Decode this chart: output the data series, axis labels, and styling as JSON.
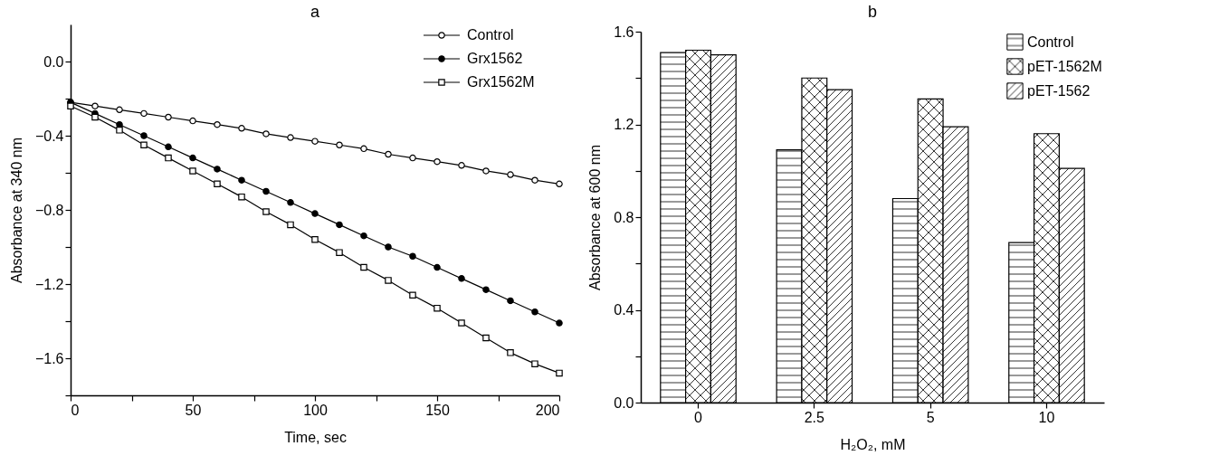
{
  "chart_data": [
    {
      "type": "line",
      "title": "a",
      "xlabel": "Time, sec",
      "ylabel": "Absorbance at 340 nm",
      "x": [
        0,
        10,
        20,
        30,
        40,
        50,
        60,
        70,
        80,
        90,
        100,
        110,
        120,
        130,
        140,
        150,
        160,
        170,
        180,
        190,
        200
      ],
      "series": [
        {
          "name": "Control",
          "color": "#000000",
          "marker": "circle",
          "values": [
            -0.22,
            -0.24,
            -0.26,
            -0.28,
            -0.3,
            -0.32,
            -0.34,
            -0.36,
            -0.39,
            -0.41,
            -0.43,
            -0.45,
            -0.47,
            -0.5,
            -0.52,
            -0.54,
            -0.56,
            -0.59,
            -0.61,
            -0.64,
            -0.66
          ]
        },
        {
          "name": "Grx1562",
          "color": "#000000",
          "marker": "circle",
          "values": [
            -0.22,
            -0.28,
            -0.34,
            -0.4,
            -0.46,
            -0.52,
            -0.58,
            -0.64,
            -0.7,
            -0.76,
            -0.82,
            -0.88,
            -0.94,
            -1.0,
            -1.05,
            -1.11,
            -1.17,
            -1.23,
            -1.29,
            -1.35,
            -1.41
          ]
        },
        {
          "name": "Grx1562M",
          "color": "#000000",
          "marker": "square",
          "values": [
            -0.24,
            -0.3,
            -0.37,
            -0.45,
            -0.52,
            -0.59,
            -0.66,
            -0.73,
            -0.81,
            -0.88,
            -0.96,
            -1.03,
            -1.11,
            -1.18,
            -1.26,
            -1.33,
            -1.41,
            -1.49,
            -1.57,
            -1.63,
            -1.68
          ]
        }
      ],
      "xlim": [
        0,
        200
      ],
      "xticks": [
        0,
        {
          "value": 25,
          "label": null
        },
        50,
        {
          "value": 75,
          "label": null
        },
        100,
        {
          "value": 125,
          "label": null
        },
        150,
        {
          "value": 175,
          "label": null
        },
        200
      ],
      "ylim": [
        -1.8,
        0.2
      ],
      "yticks": [
        {
          "value": -1.8,
          "label": null
        },
        {
          "value": -1.6,
          "label": "−1.6"
        },
        {
          "value": -1.4,
          "label": null
        },
        {
          "value": -1.2,
          "label": "−1.2"
        },
        {
          "value": -1.0,
          "label": null
        },
        {
          "value": -0.8,
          "label": "−0.8"
        },
        {
          "value": -0.6,
          "label": null
        },
        {
          "value": -0.4,
          "label": "−0.4"
        },
        {
          "value": -0.2,
          "label": null
        },
        {
          "value": 0,
          "label": "0.0"
        }
      ],
      "legend": "top right",
      "grid": false,
      "line_style": "solid"
    },
    {
      "type": "bar",
      "title": "b",
      "xlabel": "H₂O₂, mM",
      "ylabel": "Absorbance at 600 nm",
      "categories": [
        "0",
        "2.5",
        "5",
        "10"
      ],
      "series": [
        {
          "name": "Control",
          "color": "#000000",
          "values": [
            1.51,
            1.09,
            0.88,
            0.69
          ]
        },
        {
          "name": "pET-1562M",
          "color": "#000000",
          "values": [
            1.52,
            1.4,
            1.31,
            1.16
          ]
        },
        {
          "name": "pET-1562",
          "color": "#000000",
          "values": [
            1.5,
            1.35,
            1.19,
            1.01
          ]
        }
      ],
      "ylim": [
        0,
        1.6
      ],
      "yticks": [
        {
          "value": 0,
          "label": "0.0"
        },
        {
          "value": 0.2,
          "label": null
        },
        {
          "value": 0.4,
          "label": "0.4"
        },
        {
          "value": 0.6,
          "label": null
        },
        {
          "value": 0.8,
          "label": "0.8"
        },
        {
          "value": 1.0,
          "label": null
        },
        {
          "value": 1.2,
          "label": "1.2"
        },
        {
          "value": 1.4,
          "label": null
        },
        {
          "value": 1.6,
          "label": "1.6"
        }
      ],
      "legend": "top right",
      "grid": false
    }
  ]
}
